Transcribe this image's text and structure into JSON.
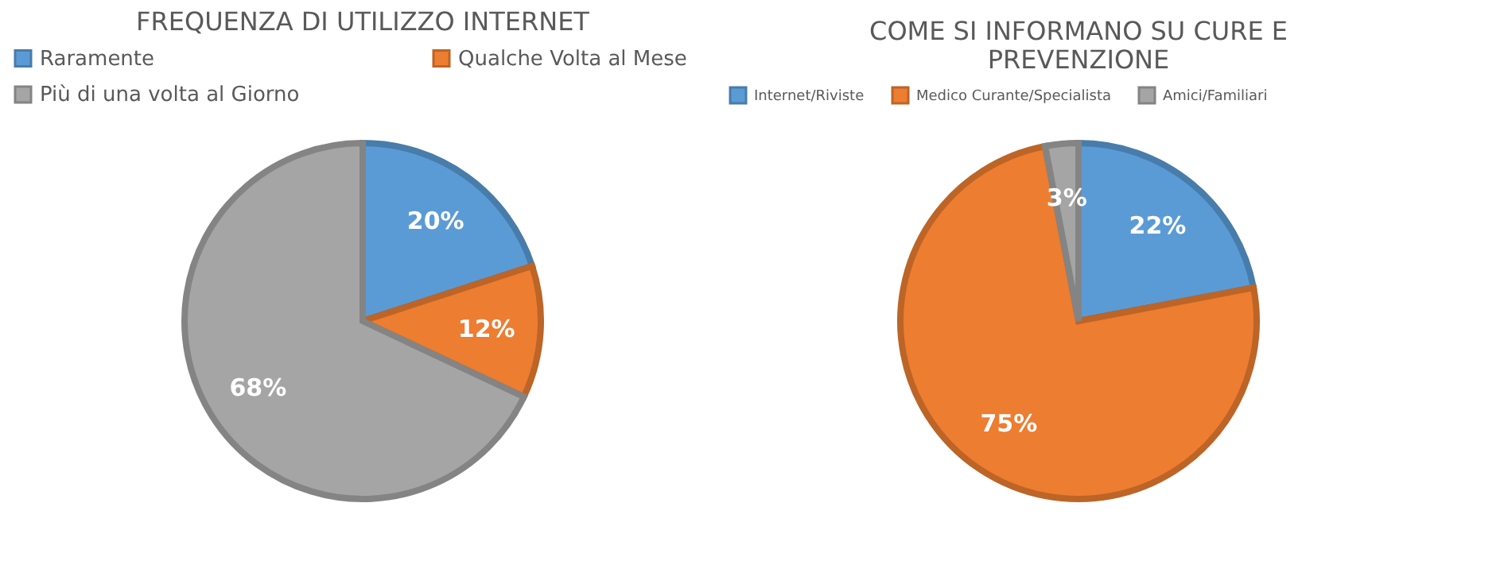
{
  "chart_data": [
    {
      "type": "pie",
      "title": "FREQUENZA DI UTILIZZO INTERNET",
      "legend": "top",
      "categories": [
        "Raramente",
        "Qualche Volta al Mese",
        "Più di una volta al Giorno"
      ],
      "values": [
        20,
        12,
        68
      ],
      "colors": [
        "#5b9bd5",
        "#ed7d31",
        "#a5a5a5"
      ],
      "value_labels": [
        "20%",
        "12%",
        "68%"
      ]
    },
    {
      "type": "pie",
      "title": "COME SI INFORMANO SU CURE E PREVENZIONE",
      "legend": "top",
      "categories": [
        "Internet/Riviste",
        "Medico Curante/Specialista",
        "Amici/Familiari"
      ],
      "values": [
        22,
        75,
        3
      ],
      "colors": [
        "#5b9bd5",
        "#ed7d31",
        "#a5a5a5"
      ],
      "value_labels": [
        "22%",
        "75%",
        "3%"
      ]
    }
  ]
}
